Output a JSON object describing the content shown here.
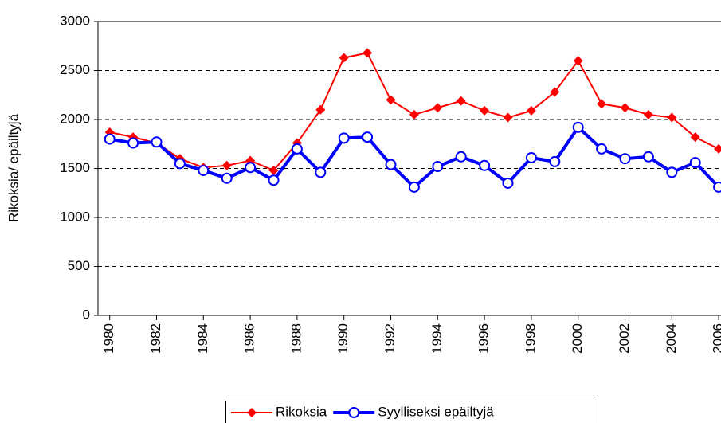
{
  "chart_data": {
    "type": "line",
    "ylabel": "Rikoksia/ epäiltyjä",
    "x": [
      1980,
      1981,
      1982,
      1983,
      1984,
      1985,
      1986,
      1987,
      1988,
      1989,
      1990,
      1991,
      1992,
      1993,
      1994,
      1995,
      1996,
      1997,
      1998,
      1999,
      2000,
      2001,
      2002,
      2003,
      2004,
      2005,
      2006
    ],
    "series": [
      {
        "name": "Rikoksia",
        "color": "#ff0000",
        "marker": "diamond",
        "values": [
          1870,
          1820,
          1760,
          1600,
          1510,
          1530,
          1580,
          1480,
          1760,
          2100,
          2630,
          2680,
          2200,
          2050,
          2120,
          2190,
          2090,
          2020,
          2090,
          2280,
          2600,
          2160,
          2120,
          2050,
          2020,
          1820,
          1700
        ]
      },
      {
        "name": "Syylliseksi epäiltyjä",
        "color": "#0000ff",
        "marker": "circle",
        "values": [
          1800,
          1760,
          1770,
          1550,
          1480,
          1400,
          1510,
          1380,
          1700,
          1460,
          1810,
          1820,
          1540,
          1310,
          1520,
          1620,
          1530,
          1350,
          1610,
          1570,
          1920,
          1700,
          1600,
          1620,
          1460,
          1560,
          1310
        ]
      }
    ],
    "xlim": [
      1979.5,
      2006.5
    ],
    "xticks": [
      1980,
      1982,
      1984,
      1986,
      1988,
      1990,
      1992,
      1994,
      1996,
      1998,
      2000,
      2002,
      2004,
      2006
    ],
    "ylim": [
      0,
      3000
    ],
    "yticks": [
      0,
      500,
      1000,
      1500,
      2000,
      2500,
      3000
    ],
    "grid": true,
    "legend": "bottom"
  }
}
